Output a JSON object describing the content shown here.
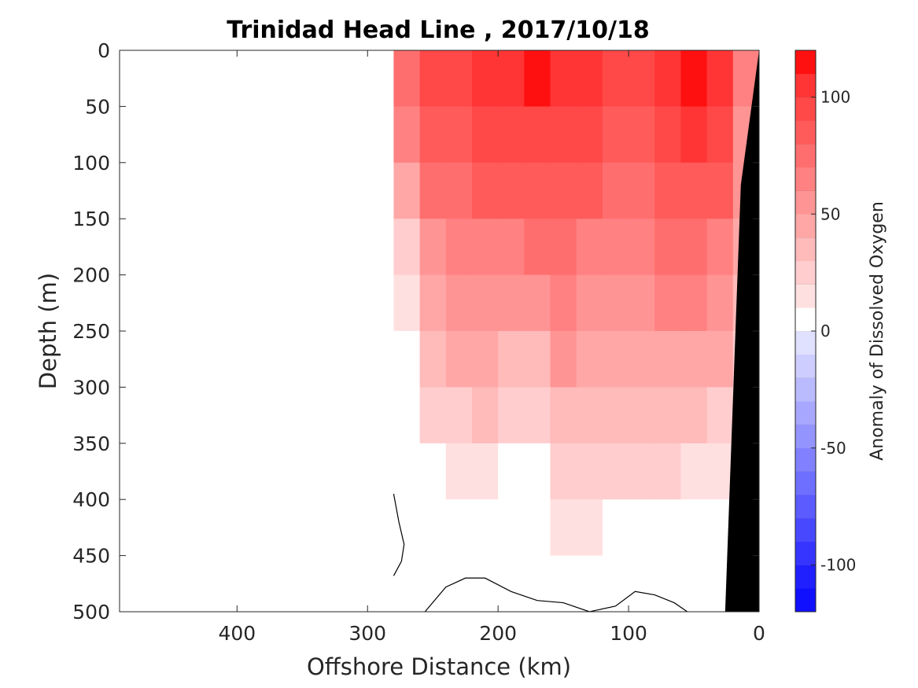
{
  "chart_data": {
    "type": "heatmap",
    "subtype": "filled-contour",
    "title": "Trinidad Head Line , 2017/10/18",
    "xlabel": "Offshore Distance (km)",
    "ylabel": "Depth (m)",
    "xlim": [
      490,
      0
    ],
    "ylim": [
      0,
      500
    ],
    "x_reversed": true,
    "y_reversed": true,
    "xticks": [
      400,
      300,
      200,
      100,
      0
    ],
    "xtick_labels": [
      "400",
      "300",
      "200",
      "100",
      "0"
    ],
    "yticks": [
      0,
      50,
      100,
      150,
      200,
      250,
      300,
      350,
      400,
      450,
      500
    ],
    "ytick_labels": [
      "0",
      "50",
      "100",
      "150",
      "200",
      "250",
      "300",
      "350",
      "400",
      "450",
      "500"
    ],
    "grid": false,
    "colorbar": {
      "label": "Anomaly of Dissolved Oxygen",
      "range": [
        -120,
        120
      ],
      "ticks": [
        100,
        50,
        0,
        -50,
        -100
      ],
      "tick_labels": [
        "100",
        "50",
        "0",
        "-50",
        "-100"
      ],
      "levels": [
        -120,
        -110,
        -100,
        -90,
        -80,
        -70,
        -60,
        -50,
        -40,
        -30,
        -20,
        -10,
        0,
        10,
        20,
        30,
        40,
        50,
        60,
        70,
        80,
        90,
        100,
        110,
        120
      ],
      "colors": [
        "#1010ff",
        "#2020ff",
        "#3535ff",
        "#4848ff",
        "#5b5bff",
        "#6e6eff",
        "#8181ff",
        "#9494ff",
        "#a7a7ff",
        "#babaff",
        "#cdcdff",
        "#e0e0ff",
        "#ffffff",
        "#ffe0e0",
        "#ffcdcd",
        "#ffbaba",
        "#ffa7a7",
        "#ff9494",
        "#ff8181",
        "#ff6e6e",
        "#ff5b5b",
        "#ff4848",
        "#ff3535",
        "#ff1010"
      ]
    },
    "data_extent_x": [
      280,
      0
    ],
    "data_extent_y": [
      0,
      500
    ],
    "seafloor_color": "#000000",
    "anomaly_profile_x": [
      280,
      260,
      240,
      220,
      200,
      180,
      160,
      140,
      120,
      100,
      80,
      60,
      40,
      20
    ],
    "anomaly_surface_values": [
      85,
      100,
      105,
      110,
      115,
      120,
      115,
      105,
      100,
      105,
      115,
      120,
      110,
      70
    ],
    "anomaly_profile_depth": [
      0,
      50,
      100,
      150,
      200,
      250,
      300,
      350,
      400,
      450,
      500
    ],
    "anomaly_max_depth_positive": [
      250,
      400,
      420,
      430,
      380,
      390,
      470,
      480,
      460,
      450,
      440,
      430,
      420,
      430
    ],
    "zero_contours": [
      {
        "x": [
          280,
          276,
          272,
          274,
          280
        ],
        "y": [
          395,
          420,
          440,
          455,
          468
        ]
      },
      {
        "x": [
          256,
          240,
          225,
          210,
          190,
          170,
          150,
          130,
          110,
          95,
          80,
          65,
          55
        ],
        "y": [
          500,
          478,
          470,
          470,
          482,
          490,
          492,
          500,
          495,
          482,
          485,
          492,
          500
        ]
      }
    ]
  }
}
